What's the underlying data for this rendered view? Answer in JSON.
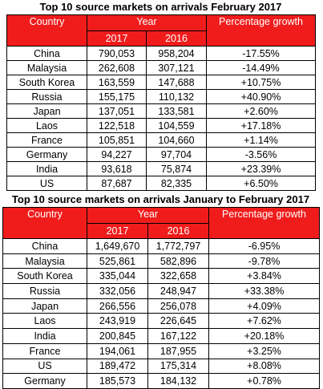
{
  "tables": [
    {
      "title": "Top 10 source markets on arrivals February 2017",
      "headers": {
        "country": "Country",
        "year": "Year",
        "growth": "Percentage growth",
        "years": [
          "2017",
          "2016"
        ]
      },
      "rows": [
        [
          "China",
          "790,053",
          "958,204",
          "-17.55%"
        ],
        [
          "Malaysia",
          "262,608",
          "307,121",
          "-14.49%"
        ],
        [
          "South Korea",
          "163,559",
          "147,688",
          "+10.75%"
        ],
        [
          "Russia",
          "155,175",
          "110,132",
          "+40.90%"
        ],
        [
          "Japan",
          "137,051",
          "133,581",
          "+2.60%"
        ],
        [
          "Laos",
          "122,518",
          "104,559",
          "+17.18%"
        ],
        [
          "France",
          "105,851",
          "104,660",
          "+1.14%"
        ],
        [
          "Germany",
          "94,227",
          "97,704",
          "-3.56%"
        ],
        [
          "India",
          "93,618",
          "75,874",
          "+23.39%"
        ],
        [
          "US",
          "87,687",
          "82,335",
          "+6.50%"
        ]
      ]
    },
    {
      "title": "Top 10 source markets on arrivals January to February 2017",
      "headers": {
        "country": "Country",
        "year": "Year",
        "growth": "Percentage growth",
        "years": [
          "2017",
          "2016"
        ]
      },
      "rows": [
        [
          "China",
          "1,649,670",
          "1,772,797",
          "-6.95%"
        ],
        [
          "Malaysia",
          "525,861",
          "582,896",
          "-9.78%"
        ],
        [
          "South Korea",
          "335,044",
          "322,658",
          "+3.84%"
        ],
        [
          "Russia",
          "332,056",
          "248,947",
          "+33.38%"
        ],
        [
          "Japan",
          "266,556",
          "256,078",
          "+4.09%"
        ],
        [
          "Laos",
          "243,919",
          "226,645",
          "+7.62%"
        ],
        [
          "India",
          "200,845",
          "167,122",
          "+20.18%"
        ],
        [
          "France",
          "194,061",
          "187,955",
          "+3.25%"
        ],
        [
          "US",
          "189,472",
          "175,314",
          "+8.08%"
        ],
        [
          "Germany",
          "185,573",
          "184,132",
          "+0.78%"
        ]
      ]
    }
  ]
}
